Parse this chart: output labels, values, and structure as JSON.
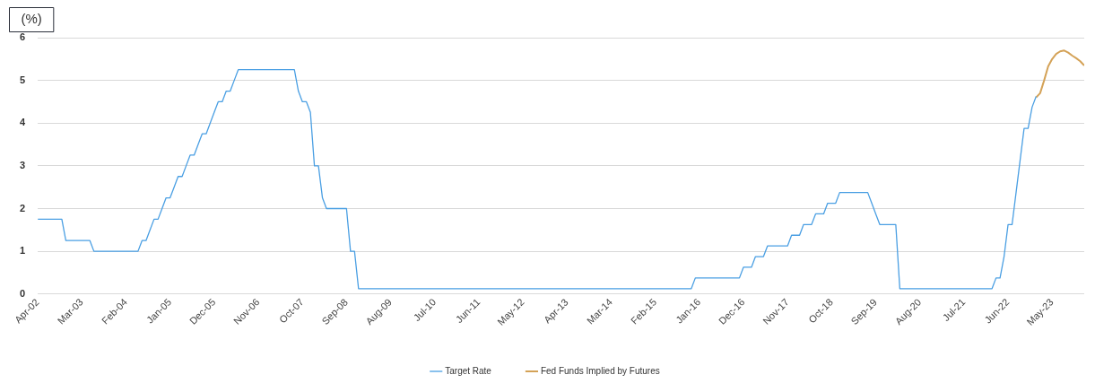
{
  "chart_data": {
    "type": "line",
    "ylabel": "(%)",
    "xlim": [
      "2002-04",
      "2024-01"
    ],
    "xticks": [
      {
        "value": "2002-04",
        "label": "Apr-02"
      },
      {
        "value": "2003-03",
        "label": "Mar-03"
      },
      {
        "value": "2004-02",
        "label": "Feb-04"
      },
      {
        "value": "2005-01",
        "label": "Jan-05"
      },
      {
        "value": "2005-12",
        "label": "Dec-05"
      },
      {
        "value": "2006-11",
        "label": "Nov-06"
      },
      {
        "value": "2007-10",
        "label": "Oct-07"
      },
      {
        "value": "2008-09",
        "label": "Sep-08"
      },
      {
        "value": "2009-08",
        "label": "Aug-09"
      },
      {
        "value": "2010-07",
        "label": "Jul-10"
      },
      {
        "value": "2011-06",
        "label": "Jun-11"
      },
      {
        "value": "2012-05",
        "label": "May-12"
      },
      {
        "value": "2013-04",
        "label": "Apr-13"
      },
      {
        "value": "2014-03",
        "label": "Mar-14"
      },
      {
        "value": "2015-02",
        "label": "Feb-15"
      },
      {
        "value": "2016-01",
        "label": "Jan-16"
      },
      {
        "value": "2016-12",
        "label": "Dec-16"
      },
      {
        "value": "2017-11",
        "label": "Nov-17"
      },
      {
        "value": "2018-10",
        "label": "Oct-18"
      },
      {
        "value": "2019-09",
        "label": "Sep-19"
      },
      {
        "value": "2020-08",
        "label": "Aug-20"
      },
      {
        "value": "2021-07",
        "label": "Jul-21"
      },
      {
        "value": "2022-06",
        "label": "Jun-22"
      },
      {
        "value": "2023-05",
        "label": "May-23"
      }
    ],
    "ylim": [
      0,
      6
    ],
    "yticks": [
      0,
      1,
      2,
      3,
      4,
      5,
      6
    ],
    "grid": "y",
    "legend": "bottom",
    "marker": "none",
    "line_style": "solid",
    "series": [
      {
        "name": "Target Rate",
        "color": "#4a9fe3",
        "x": [
          "2002-04",
          "2002-10",
          "2002-11",
          "2003-05",
          "2003-06",
          "2004-05",
          "2004-06",
          "2004-07",
          "2004-08",
          "2004-09",
          "2004-10",
          "2004-11",
          "2004-12",
          "2005-01",
          "2005-02",
          "2005-03",
          "2005-04",
          "2005-05",
          "2005-06",
          "2005-07",
          "2005-08",
          "2005-09",
          "2005-10",
          "2005-11",
          "2005-12",
          "2006-01",
          "2006-02",
          "2006-03",
          "2006-04",
          "2006-05",
          "2006-06",
          "2007-08",
          "2007-09",
          "2007-10",
          "2007-11",
          "2007-12",
          "2008-01",
          "2008-02",
          "2008-03",
          "2008-04",
          "2008-09",
          "2008-10",
          "2008-11",
          "2008-12",
          "2015-11",
          "2015-12",
          "2016-11",
          "2016-12",
          "2017-02",
          "2017-03",
          "2017-05",
          "2017-06",
          "2017-11",
          "2017-12",
          "2018-02",
          "2018-03",
          "2018-05",
          "2018-06",
          "2018-08",
          "2018-09",
          "2018-11",
          "2018-12",
          "2019-06",
          "2019-07",
          "2019-08",
          "2019-09",
          "2019-10",
          "2020-02",
          "2020-03",
          "2022-02",
          "2022-03",
          "2022-04",
          "2022-05",
          "2022-06",
          "2022-07",
          "2022-08",
          "2022-09",
          "2022-10",
          "2022-11",
          "2022-12",
          "2023-01"
        ],
        "values": [
          1.75,
          1.75,
          1.25,
          1.25,
          1.0,
          1.0,
          1.25,
          1.25,
          1.5,
          1.75,
          1.75,
          2.0,
          2.25,
          2.25,
          2.5,
          2.75,
          2.75,
          3.0,
          3.25,
          3.25,
          3.5,
          3.75,
          3.75,
          4.0,
          4.25,
          4.5,
          4.5,
          4.75,
          4.75,
          5.0,
          5.25,
          5.25,
          4.75,
          4.5,
          4.5,
          4.25,
          3.0,
          3.0,
          2.25,
          2.0,
          2.0,
          1.0,
          1.0,
          0.125,
          0.125,
          0.375,
          0.375,
          0.625,
          0.625,
          0.875,
          0.875,
          1.125,
          1.125,
          1.375,
          1.375,
          1.625,
          1.625,
          1.875,
          1.875,
          2.125,
          2.125,
          2.375,
          2.375,
          2.375,
          2.125,
          1.875,
          1.625,
          1.625,
          0.125,
          0.125,
          0.375,
          0.375,
          0.875,
          1.625,
          1.625,
          2.375,
          3.125,
          3.875,
          3.875,
          4.375,
          4.625
        ]
      },
      {
        "name": "Fed Funds Implied by Futures",
        "color": "#d4a257",
        "x": [
          "2023-01",
          "2023-02",
          "2023-03",
          "2023-04",
          "2023-05",
          "2023-06",
          "2023-07",
          "2023-08",
          "2023-09",
          "2023-10",
          "2023-11",
          "2023-12",
          "2024-01"
        ],
        "values": [
          4.6,
          4.7,
          5.0,
          5.33,
          5.5,
          5.62,
          5.68,
          5.7,
          5.65,
          5.58,
          5.52,
          5.45,
          5.35
        ]
      }
    ]
  }
}
